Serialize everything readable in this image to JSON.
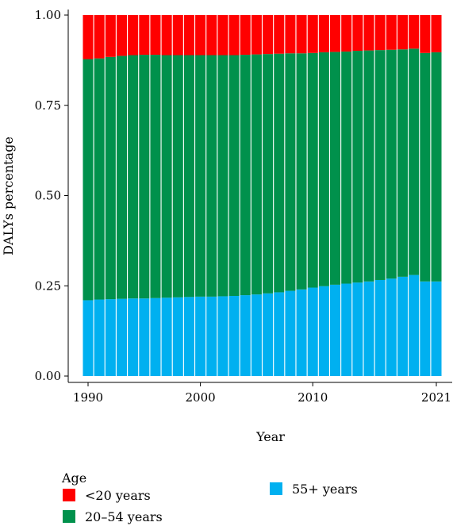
{
  "chart_data": {
    "type": "bar",
    "stacked": true,
    "xlabel": "Year",
    "ylabel": "DALYs percentage",
    "ylim": [
      0,
      1
    ],
    "yticks": [
      "0.00",
      "0.25",
      "0.50",
      "0.75",
      "1.00"
    ],
    "xticks": [
      "1990",
      "2000",
      "2010",
      "2021"
    ],
    "categories": [
      1990,
      1991,
      1992,
      1993,
      1994,
      1995,
      1996,
      1997,
      1998,
      1999,
      2000,
      2001,
      2002,
      2003,
      2004,
      2005,
      2006,
      2007,
      2008,
      2009,
      2010,
      2011,
      2012,
      2013,
      2014,
      2015,
      2016,
      2017,
      2018,
      2019,
      2020,
      2021
    ],
    "legend": {
      "title": "Age",
      "position": "bottom"
    },
    "series": [
      {
        "name": "55+ years",
        "color": "#00b0f0",
        "values": [
          0.21,
          0.212,
          0.213,
          0.214,
          0.215,
          0.215,
          0.216,
          0.217,
          0.218,
          0.219,
          0.22,
          0.22,
          0.221,
          0.222,
          0.224,
          0.226,
          0.229,
          0.232,
          0.236,
          0.24,
          0.245,
          0.249,
          0.253,
          0.256,
          0.259,
          0.262,
          0.266,
          0.27,
          0.275,
          0.28,
          0.262,
          0.262
        ]
      },
      {
        "name": "20–54 years",
        "color": "#00914c",
        "values": [
          0.668,
          0.668,
          0.671,
          0.673,
          0.674,
          0.675,
          0.674,
          0.672,
          0.671,
          0.67,
          0.669,
          0.669,
          0.668,
          0.667,
          0.666,
          0.665,
          0.663,
          0.661,
          0.658,
          0.654,
          0.65,
          0.648,
          0.645,
          0.643,
          0.642,
          0.64,
          0.637,
          0.634,
          0.63,
          0.627,
          0.633,
          0.635
        ]
      },
      {
        "name": "<20 years",
        "color": "#ff0000",
        "values": [
          0.122,
          0.12,
          0.116,
          0.113,
          0.111,
          0.11,
          0.11,
          0.111,
          0.111,
          0.111,
          0.111,
          0.111,
          0.111,
          0.111,
          0.11,
          0.109,
          0.108,
          0.107,
          0.106,
          0.106,
          0.105,
          0.103,
          0.102,
          0.101,
          0.099,
          0.098,
          0.097,
          0.096,
          0.095,
          0.093,
          0.105,
          0.103
        ]
      }
    ]
  }
}
